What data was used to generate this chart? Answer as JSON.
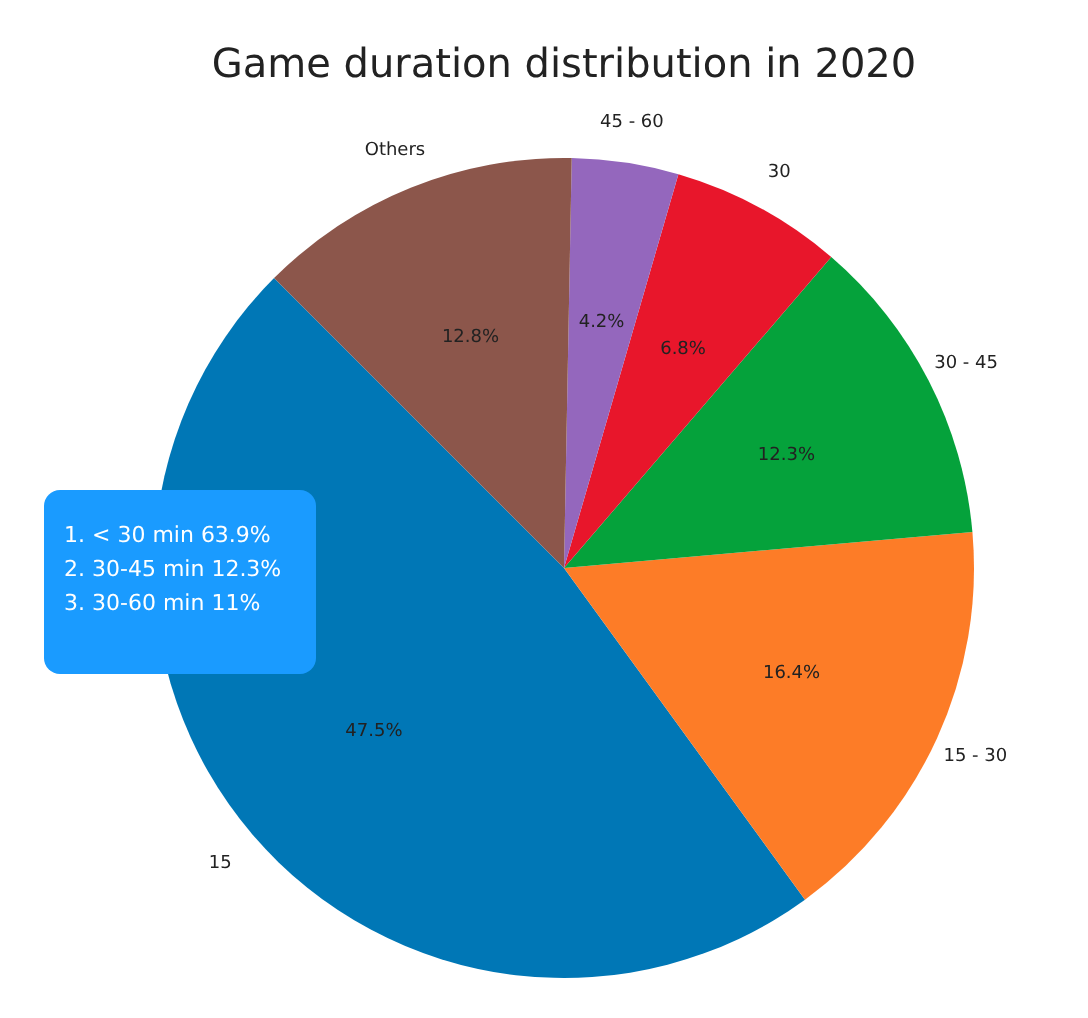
{
  "chart_data": {
    "type": "pie",
    "title": "Game duration distribution in 2020",
    "categories": [
      "15",
      "15 - 30",
      "30 - 45",
      "30",
      "45 - 60",
      "Others"
    ],
    "values": [
      47.5,
      16.4,
      12.3,
      6.8,
      4.2,
      12.8
    ],
    "value_labels": [
      "47.5%",
      "16.4%",
      "12.3%",
      "6.8%",
      "4.2%",
      "12.8%"
    ],
    "colors": [
      "#0077b6",
      "#fd7c27",
      "#05a23b",
      "#e8162b",
      "#9467bd",
      "#8c564b"
    ],
    "annotations": [
      "1.  < 30 min 63.9%",
      "2.  30-45 min 12.3%",
      "3.  30-60 min 11%"
    ]
  }
}
